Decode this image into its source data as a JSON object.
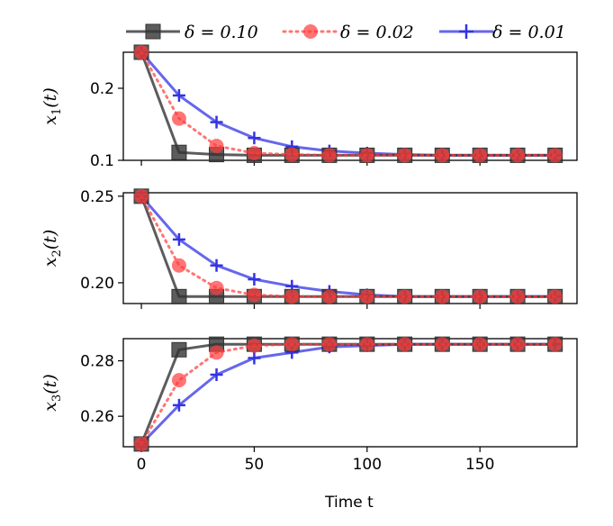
{
  "chart_data": {
    "type": "line",
    "xlabel": "Time t",
    "xlim": [
      -8,
      193
    ],
    "x_ticks": [
      0,
      50,
      100,
      150
    ],
    "x": [
      0,
      16.7,
      33.3,
      50,
      66.7,
      83.3,
      100,
      116.7,
      133.3,
      150,
      166.7,
      183.3
    ],
    "legend": {
      "position": "top",
      "entries": [
        "δ = 0.10",
        "δ = 0.02",
        "δ = 0.01"
      ]
    },
    "series_styles": [
      {
        "name": "δ = 0.10",
        "color": "#333333",
        "marker": "square",
        "dash": "solid"
      },
      {
        "name": "δ = 0.02",
        "color": "#ff3b3b",
        "marker": "circle",
        "dash": "dotted"
      },
      {
        "name": "δ = 0.01",
        "color": "#3333e6",
        "marker": "plus",
        "dash": "solid"
      }
    ],
    "panels": [
      {
        "ylabel": "x1(t)",
        "ylim": [
          0.1,
          0.25
        ],
        "y_ticks": [
          0.1,
          0.2
        ],
        "y_tick_labels": [
          "0.1",
          "0.2"
        ],
        "series": [
          {
            "name": "δ = 0.10",
            "values": [
              0.25,
              0.111,
              0.108,
              0.107,
              0.107,
              0.107,
              0.107,
              0.107,
              0.107,
              0.107,
              0.107,
              0.107
            ]
          },
          {
            "name": "δ = 0.02",
            "values": [
              0.25,
              0.158,
              0.12,
              0.11,
              0.108,
              0.107,
              0.107,
              0.107,
              0.107,
              0.107,
              0.107,
              0.107
            ]
          },
          {
            "name": "δ = 0.01",
            "values": [
              0.25,
              0.19,
              0.153,
              0.131,
              0.119,
              0.113,
              0.11,
              0.108,
              0.107,
              0.107,
              0.107,
              0.107
            ]
          }
        ]
      },
      {
        "ylabel": "x2(t)",
        "ylim": [
          0.188,
          0.252
        ],
        "y_ticks": [
          0.2,
          0.25
        ],
        "y_tick_labels": [
          "0.20",
          "0.25"
        ],
        "series": [
          {
            "name": "δ = 0.10",
            "values": [
              0.25,
              0.192,
              0.192,
              0.192,
              0.192,
              0.192,
              0.192,
              0.192,
              0.192,
              0.192,
              0.192,
              0.192
            ]
          },
          {
            "name": "δ = 0.02",
            "values": [
              0.25,
              0.21,
              0.197,
              0.193,
              0.192,
              0.192,
              0.192,
              0.192,
              0.192,
              0.192,
              0.192,
              0.192
            ]
          },
          {
            "name": "δ = 0.01",
            "values": [
              0.25,
              0.225,
              0.21,
              0.202,
              0.198,
              0.195,
              0.193,
              0.192,
              0.192,
              0.192,
              0.192,
              0.192
            ]
          }
        ]
      },
      {
        "ylabel": "x3(t)",
        "ylim": [
          0.249,
          0.288
        ],
        "y_ticks": [
          0.26,
          0.28
        ],
        "y_tick_labels": [
          "0.26",
          "0.28"
        ],
        "series": [
          {
            "name": "δ = 0.10",
            "values": [
              0.25,
              0.284,
              0.286,
              0.286,
              0.286,
              0.286,
              0.286,
              0.286,
              0.286,
              0.286,
              0.286,
              0.286
            ]
          },
          {
            "name": "δ = 0.02",
            "values": [
              0.25,
              0.273,
              0.283,
              0.2855,
              0.286,
              0.286,
              0.286,
              0.286,
              0.286,
              0.286,
              0.286,
              0.286
            ]
          },
          {
            "name": "δ = 0.01",
            "values": [
              0.25,
              0.264,
              0.275,
              0.281,
              0.283,
              0.285,
              0.2855,
              0.286,
              0.286,
              0.286,
              0.286,
              0.286
            ]
          }
        ]
      }
    ]
  }
}
